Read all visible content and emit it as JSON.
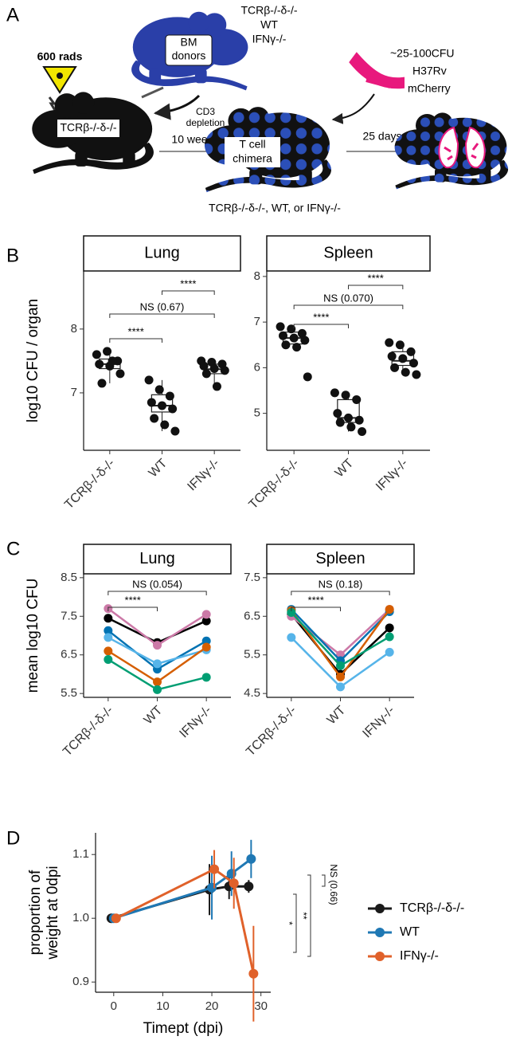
{
  "panel_labels": [
    "A",
    "B",
    "C",
    "D"
  ],
  "diagram": {
    "dose": "600 rads",
    "donor_genotypes": [
      "TCRβ-/-δ-/-",
      "WT",
      "IFNγ-/-"
    ],
    "donor_label": [
      "BM",
      "donors"
    ],
    "depletion": [
      "CD3",
      "depletion"
    ],
    "recipient": "TCRβ-/-δ-/-",
    "step1": "10 weeks",
    "chimera": [
      "T cell",
      "chimera"
    ],
    "chimera_genotypes": "TCRβ-/-δ-/-, WT, or IFNγ-/-",
    "infection": [
      "~25-100CFU",
      "H37Rv",
      "mCherry"
    ],
    "step2": "25 days"
  },
  "chart_data": [
    {
      "type": "box",
      "facet": "Lung",
      "ylabel": "log10 CFU / organ",
      "categories": [
        "TCRβ-/-δ-/-",
        "WT",
        "IFNγ-/-"
      ],
      "boxes": [
        {
          "low": 7.15,
          "q1": 7.38,
          "median": 7.45,
          "q3": 7.53,
          "high": 7.65
        },
        {
          "low": 6.4,
          "q1": 6.7,
          "median": 6.8,
          "q3": 6.97,
          "high": 7.2
        },
        {
          "low": 7.1,
          "q1": 7.3,
          "median": 7.37,
          "q3": 7.45,
          "high": 7.5
        }
      ],
      "points": [
        [
          7.6,
          7.65,
          7.5,
          7.45,
          7.42,
          7.3,
          7.15,
          7.5
        ],
        [
          7.2,
          7.05,
          6.95,
          6.85,
          6.8,
          6.75,
          6.6,
          6.5,
          6.4
        ],
        [
          7.5,
          7.48,
          7.45,
          7.42,
          7.38,
          7.35,
          7.3,
          7.1
        ]
      ],
      "ylim": [
        6.1,
        8.91
      ],
      "yticks": [
        7,
        8
      ],
      "annotations": [
        "****",
        "NS (0.67)",
        "****"
      ]
    },
    {
      "type": "box",
      "facet": "Spleen",
      "categories": [
        "TCRβ-/-δ-/-",
        "WT",
        "IFNγ-/-"
      ],
      "boxes": [
        {
          "low": 6.45,
          "q1": 6.52,
          "median": 6.65,
          "q3": 6.78,
          "high": 6.9
        },
        {
          "low": 4.6,
          "q1": 4.8,
          "median": 4.9,
          "q3": 5.3,
          "high": 5.45
        },
        {
          "low": 5.85,
          "q1": 6.05,
          "median": 6.15,
          "q3": 6.35,
          "high": 6.55
        }
      ],
      "points": [
        [
          6.9,
          6.85,
          6.75,
          6.7,
          6.65,
          6.6,
          6.5,
          6.45,
          5.8
        ],
        [
          5.45,
          5.4,
          5.3,
          5.0,
          4.9,
          4.85,
          4.8,
          4.7,
          4.6
        ],
        [
          6.55,
          6.5,
          6.35,
          6.25,
          6.2,
          6.1,
          6.0,
          5.9,
          5.85
        ]
      ],
      "ylim": [
        4.19,
        8.12
      ],
      "yticks": [
        5,
        6,
        7,
        8
      ],
      "annotations": [
        "****",
        "NS (0.070)",
        "****"
      ]
    },
    {
      "type": "line",
      "facet": "Lung",
      "ylabel": "mean log10 CFU",
      "categories": [
        "TCRβ-/-δ-/-",
        "WT",
        "IFNγ-/-"
      ],
      "series": [
        {
          "color": "#000000",
          "values": [
            7.45,
            6.82,
            7.38
          ]
        },
        {
          "color": "#cc79a7",
          "values": [
            7.7,
            6.75,
            7.55
          ]
        },
        {
          "color": "#0072b2",
          "values": [
            7.13,
            6.13,
            6.86
          ]
        },
        {
          "color": "#56b4e9",
          "values": [
            6.95,
            6.27,
            6.63
          ]
        },
        {
          "color": "#d55e00",
          "values": [
            6.6,
            5.8,
            6.7
          ]
        },
        {
          "color": "#009e73",
          "values": [
            6.38,
            5.6,
            5.92
          ]
        }
      ],
      "ylim": [
        5.4,
        8.6
      ],
      "yticks": [
        5.5,
        6.5,
        7.5,
        8.5
      ],
      "annotations": [
        "NS (0.054)",
        "****"
      ]
    },
    {
      "type": "line",
      "facet": "Spleen",
      "categories": [
        "TCRβ-/-δ-/-",
        "WT",
        "IFNγ-/-"
      ],
      "series": [
        {
          "color": "#000000",
          "values": [
            6.55,
            5.0,
            6.2
          ]
        },
        {
          "color": "#cc79a7",
          "values": [
            6.5,
            5.5,
            6.68
          ]
        },
        {
          "color": "#0072b2",
          "values": [
            6.68,
            5.35,
            6.62
          ]
        },
        {
          "color": "#56b4e9",
          "values": [
            5.95,
            4.67,
            5.57
          ]
        },
        {
          "color": "#d55e00",
          "values": [
            6.65,
            4.93,
            6.68
          ]
        },
        {
          "color": "#009e73",
          "values": [
            6.6,
            5.22,
            5.97
          ]
        }
      ],
      "ylim": [
        4.4,
        7.6
      ],
      "yticks": [
        4.5,
        5.5,
        6.5,
        7.5
      ],
      "annotations": [
        "NS (0.18)",
        "****"
      ]
    },
    {
      "type": "line",
      "xlabel": "Timept (dpi)",
      "ylabel": [
        "proportion of",
        "weight at 0dpi"
      ],
      "x": [
        0,
        20,
        24,
        28
      ],
      "series": [
        {
          "name": "TCRβ-/-δ-/-",
          "color": "#1a1a1a",
          "values": [
            1.0,
            1.045,
            1.05,
            1.05
          ],
          "errors": [
            0,
            0.04,
            0.02,
            0.01
          ]
        },
        {
          "name": "WT",
          "color": "#1f78b4",
          "values": [
            1.0,
            1.048,
            1.07,
            1.093
          ],
          "errors": [
            0,
            0.05,
            0.035,
            0.03
          ]
        },
        {
          "name": "IFNγ-/-",
          "color": "#e0612a",
          "values": [
            1.0,
            1.077,
            1.055,
            0.913
          ],
          "errors": [
            0,
            0.03,
            0.04,
            0.075
          ]
        }
      ],
      "xlim": [
        -3.7,
        32
      ],
      "xticks": [
        0,
        10,
        20,
        30
      ],
      "ylim": [
        0.884,
        1.134
      ],
      "yticks": [
        0.9,
        {
          "value": 1,
          "label": "1.0"
        },
        1.1
      ],
      "annotations": [
        "*",
        "**",
        "NS (0.66)"
      ]
    }
  ]
}
